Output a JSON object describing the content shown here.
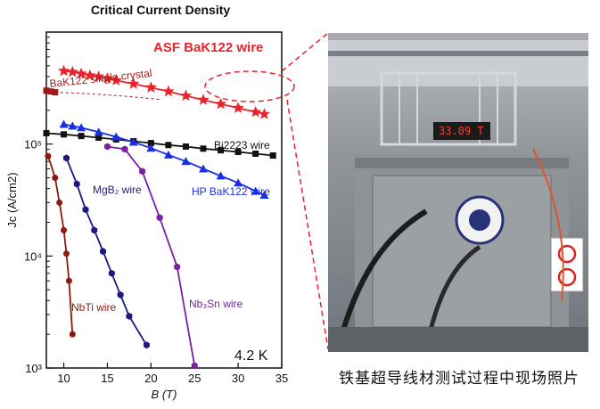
{
  "chart_data": {
    "type": "scatter",
    "title": "Critical Current Density",
    "xlabel": "B (T)",
    "ylabel": "Jc (A/cm2)",
    "x_axis": {
      "min": 8,
      "max": 35,
      "ticks": [
        10,
        15,
        20,
        25,
        30,
        35
      ]
    },
    "y_axis": {
      "scale": "log",
      "min": 1000,
      "max": 1000000,
      "ticks": [
        1000,
        10000,
        100000
      ],
      "tick_labels": [
        "10³",
        "10⁴",
        "10⁵"
      ]
    },
    "temperature_label": "4.2 K",
    "series": [
      {
        "name": "ASF BaK122 wire",
        "color": "#e8232b",
        "marker": "star",
        "x": [
          10,
          11,
          12,
          13,
          14,
          15,
          16,
          18,
          20,
          22,
          24,
          26,
          28,
          30,
          32,
          33
        ],
        "y": [
          450000,
          440000,
          425000,
          410000,
          400000,
          385000,
          370000,
          345000,
          320000,
          295000,
          270000,
          248000,
          228000,
          210000,
          193000,
          185000
        ]
      },
      {
        "name": "BaK122 single crystal",
        "color": "#9e1a1a",
        "marker": "square",
        "x": [
          8,
          8.5,
          9
        ],
        "y": [
          300000,
          295000,
          290000
        ]
      },
      {
        "name": "Bi2223 wire",
        "color": "#111111",
        "marker": "square",
        "x": [
          8,
          10,
          12,
          14,
          16,
          18,
          20,
          22,
          24,
          26,
          28,
          30,
          32,
          34
        ],
        "y": [
          125000,
          122000,
          118000,
          114000,
          110000,
          106000,
          102000,
          98000,
          95000,
          91000,
          88000,
          85000,
          82000,
          79000
        ]
      },
      {
        "name": "HP BaK122 wire",
        "color": "#1a2fe0",
        "marker": "triangle",
        "x": [
          10,
          11,
          12,
          14,
          16,
          18,
          20,
          22,
          24,
          26,
          28,
          30,
          32,
          33
        ],
        "y": [
          150000,
          145000,
          140000,
          128000,
          116000,
          104000,
          92000,
          80000,
          70000,
          60000,
          52000,
          45000,
          38000,
          35000
        ]
      },
      {
        "name": "NbTi wire",
        "color": "#8b1a0f",
        "marker": "circle",
        "x": [
          8.2,
          9,
          9.5,
          10,
          10.3,
          10.6,
          11
        ],
        "y": [
          78000,
          50000,
          30000,
          17000,
          10500,
          6000,
          2000
        ]
      },
      {
        "name": "MgB₂ wire",
        "color": "#1a1a80",
        "marker": "hexagon",
        "x": [
          10.3,
          11.5,
          12.5,
          13.5,
          14.5,
          15.5,
          16.5,
          17.5,
          19.5
        ],
        "y": [
          75000,
          44000,
          26000,
          17000,
          11000,
          7000,
          4500,
          2900,
          1600
        ]
      },
      {
        "name": "Nb₃Sn wire",
        "color": "#7a1fa6",
        "marker": "hexagon",
        "x": [
          15,
          17,
          19,
          21,
          23,
          25
        ],
        "y": [
          95000,
          90000,
          57000,
          22000,
          8000,
          1050
        ]
      }
    ]
  },
  "photo": {
    "display_reading": "33.09 T",
    "caption": "铁基超导线材测试过程中现场照片"
  }
}
